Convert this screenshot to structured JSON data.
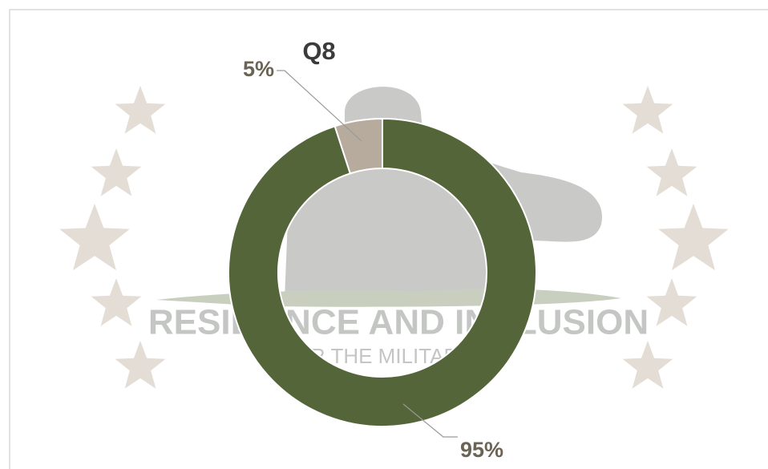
{
  "chart_data": {
    "type": "donut",
    "title": "Q8",
    "values": [
      95,
      5
    ],
    "value_labels": [
      "95%",
      "5%"
    ],
    "colors": [
      "#55653a",
      "#b7ab9d"
    ],
    "watermark_text": [
      "RESILIENCE AND INCLUSION",
      "FOR THE MILITARY"
    ]
  }
}
